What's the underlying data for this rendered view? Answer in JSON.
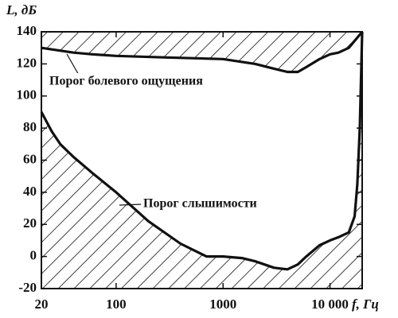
{
  "chart_data": {
    "type": "line",
    "ylabel": "L, дБ",
    "xlabel": "f, Гц",
    "xscale": "log",
    "xlim": [
      20,
      20000
    ],
    "ylim": [
      -20,
      140
    ],
    "xticks": [
      20,
      100,
      1000,
      {
        "value": 10000,
        "label": "10 000"
      }
    ],
    "yticks": [
      -20,
      0,
      20,
      40,
      60,
      80,
      100,
      120,
      140
    ],
    "series": [
      {
        "name": "Порог болевого ощущения",
        "color": "#111",
        "fill": "above",
        "x": [
          20,
          40,
          60,
          100,
          300,
          1000,
          2000,
          3000,
          4000,
          5000,
          6000,
          8000,
          10000,
          12000,
          15000,
          20000
        ],
        "values": [
          130,
          127,
          126,
          125,
          124,
          123,
          120,
          117,
          115,
          115,
          118,
          123,
          126,
          127,
          130,
          140
        ]
      },
      {
        "name": "Порог слышимости",
        "color": "#111",
        "fill": "below",
        "x": [
          20,
          25,
          30,
          40,
          60,
          100,
          200,
          400,
          700,
          1000,
          1500,
          2000,
          3000,
          4000,
          5000,
          6000,
          8000,
          10000,
          12000,
          15000,
          17000,
          18000,
          19000,
          20000
        ],
        "values": [
          90,
          78,
          70,
          62,
          52,
          40,
          22,
          8,
          0,
          0,
          -1,
          -3,
          -7,
          -8,
          -5,
          0,
          7,
          10,
          12,
          15,
          25,
          45,
          80,
          140
        ]
      }
    ]
  }
}
